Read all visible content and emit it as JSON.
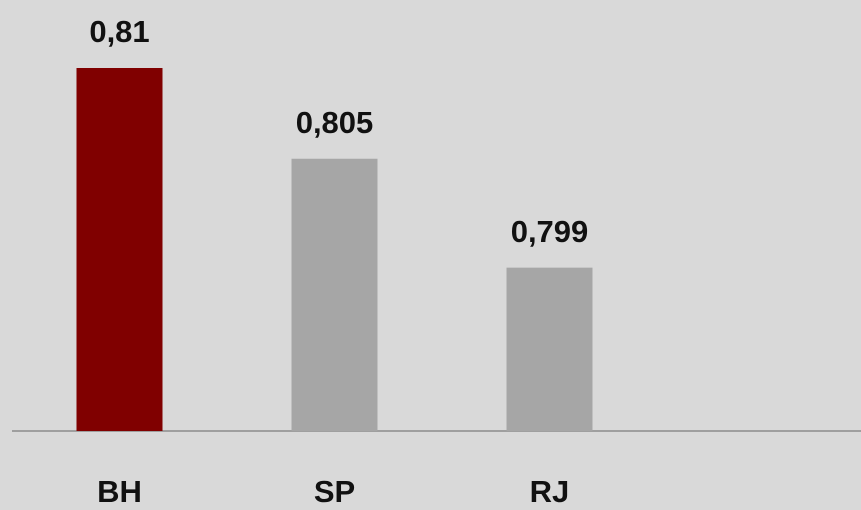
{
  "chart_data": {
    "type": "bar",
    "categories": [
      "BH",
      "SP",
      "RJ"
    ],
    "values": [
      0.81,
      0.805,
      0.799
    ],
    "value_labels": [
      "0,81",
      "0,805",
      "0,799"
    ],
    "colors": [
      "#800000",
      "#a6a6a6",
      "#a6a6a6"
    ],
    "ylim": [
      0.79,
      0.81
    ]
  }
}
